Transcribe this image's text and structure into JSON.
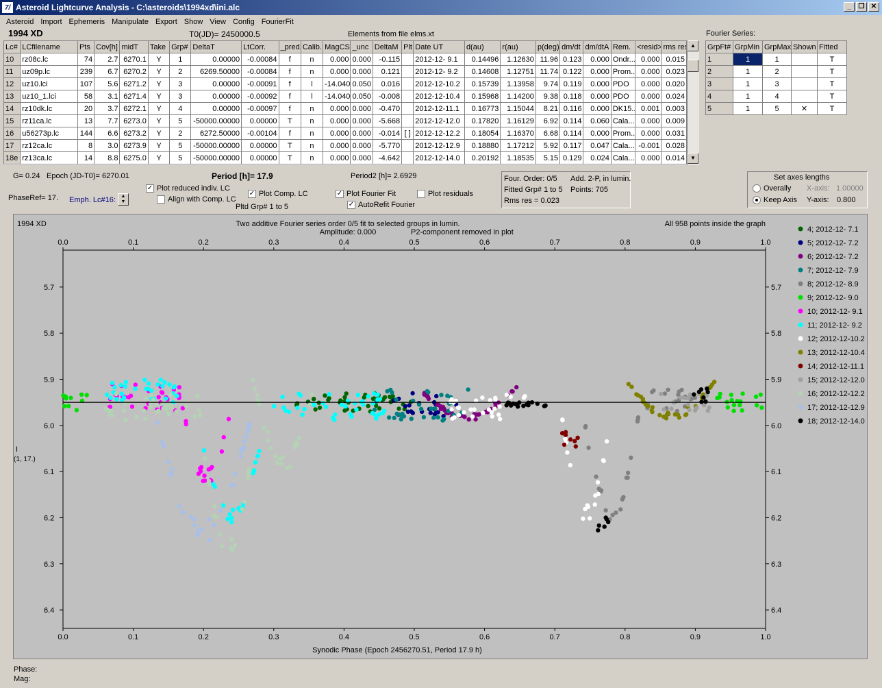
{
  "window": {
    "title": "Asteroid Lightcurve Analysis - C:\\asteroids\\1994xd\\ini.alc",
    "min": "_",
    "restore": "❐",
    "close": "✕"
  },
  "menu": [
    "Asteroid",
    "Import",
    "Ephemeris",
    "Manipulate",
    "Export",
    "Show",
    "View",
    "Config",
    "FourierFit"
  ],
  "header": {
    "asteroid": "1994 XD",
    "t0": "T0(JD)= 2450000.5",
    "elements": "Elements from file elms.xt",
    "fourier_title": "Fourier Series:"
  },
  "lc_table": {
    "columns": [
      "Lc#",
      "LCfilename",
      "Pts",
      "Cov[h]",
      "midT",
      "Take",
      "Grp#",
      "DeltaT",
      "LtCorr.",
      "_pred.",
      "Calib.",
      "MagCS",
      "_unc",
      "DeltaM",
      "Plt",
      "Date UT",
      "d(au)",
      "r(au)",
      "p(deg)",
      "dm/dt",
      "dm/dtA",
      "Rem.",
      "<resid>",
      "rms res"
    ],
    "rows": [
      [
        "10",
        "rz08c.lc",
        "74",
        "2.7",
        "6270.1",
        "Y",
        "1",
        "0.00000",
        "-0.00084",
        "f",
        "n",
        "0.000",
        "0.000",
        "-0.115",
        "",
        "2012-12- 9.1",
        "0.14496",
        "1.12630",
        "11.96",
        "0.123",
        "0.000",
        "Ondr...",
        "0.000",
        "0.015"
      ],
      [
        "11",
        "uz09p.lc",
        "239",
        "6.7",
        "6270.2",
        "Y",
        "2",
        "6269.50000",
        "-0.00084",
        "f",
        "n",
        "0.000",
        "0.000",
        "0.121",
        "",
        "2012-12- 9.2",
        "0.14608",
        "1.12751",
        "11.74",
        "0.122",
        "0.000",
        "Prom...",
        "0.000",
        "0.023"
      ],
      [
        "12",
        "uz10.lci",
        "107",
        "5.6",
        "6271.2",
        "Y",
        "3",
        "0.00000",
        "-0.00091",
        "f",
        "l",
        "-14.040",
        "0.050",
        "0.016",
        "",
        "2012-12-10.2",
        "0.15739",
        "1.13958",
        "9.74",
        "0.119",
        "0.000",
        "PDO",
        "0.000",
        "0.020"
      ],
      [
        "13",
        "uz10_1.lci",
        "58",
        "3.1",
        "6271.4",
        "Y",
        "3",
        "0.00000",
        "-0.00092",
        "f",
        "l",
        "-14.040",
        "0.050",
        "-0.008",
        "",
        "2012-12-10.4",
        "0.15968",
        "1.14200",
        "9.38",
        "0.118",
        "0.000",
        "PDO",
        "0.000",
        "0.024"
      ],
      [
        "14",
        "rz10dk.lc",
        "20",
        "3.7",
        "6272.1",
        "Y",
        "4",
        "0.00000",
        "-0.00097",
        "f",
        "n",
        "0.000",
        "0.000",
        "-0.470",
        "",
        "2012-12-11.1",
        "0.16773",
        "1.15044",
        "8.21",
        "0.116",
        "0.000",
        "DK15...",
        "0.001",
        "0.003"
      ],
      [
        "15",
        "rz11ca.lc",
        "13",
        "7.7",
        "6273.0",
        "Y",
        "5",
        "-50000.00000",
        "0.00000",
        "T",
        "n",
        "0.000",
        "0.000",
        "-5.668",
        "",
        "2012-12-12.0",
        "0.17820",
        "1.16129",
        "6.92",
        "0.114",
        "0.060",
        "Cala...",
        "0.000",
        "0.009"
      ],
      [
        "16",
        "u56273p.lc",
        "144",
        "6.6",
        "6273.2",
        "Y",
        "2",
        "6272.50000",
        "-0.00104",
        "f",
        "n",
        "0.000",
        "0.000",
        "-0.014",
        "[ ]",
        "2012-12-12.2",
        "0.18054",
        "1.16370",
        "6.68",
        "0.114",
        "0.000",
        "Prom...",
        "0.000",
        "0.031"
      ],
      [
        "17",
        "rz12ca.lc",
        "8",
        "3.0",
        "6273.9",
        "Y",
        "5",
        "-50000.00000",
        "0.00000",
        "T",
        "n",
        "0.000",
        "0.000",
        "-5.770",
        "",
        "2012-12-12.9",
        "0.18880",
        "1.17212",
        "5.92",
        "0.117",
        "0.047",
        "Cala...",
        "-0.001",
        "0.028"
      ],
      [
        "18e",
        "rz13ca.lc",
        "14",
        "8.8",
        "6275.0",
        "Y",
        "5",
        "-50000.00000",
        "0.00000",
        "T",
        "n",
        "0.000",
        "0.000",
        "-4.642",
        "",
        "2012-12-14.0",
        "0.20192",
        "1.18535",
        "5.15",
        "0.129",
        "0.024",
        "Cala...",
        "0.000",
        "0.014"
      ]
    ]
  },
  "fourier_table": {
    "columns": [
      "GrpFt#",
      "GrpMin",
      "GrpMax",
      "Shown",
      "Fitted"
    ],
    "rows": [
      [
        "1",
        "1",
        "1",
        "",
        "T"
      ],
      [
        "2",
        "1",
        "2",
        "",
        "T"
      ],
      [
        "3",
        "1",
        "3",
        "",
        "T"
      ],
      [
        "4",
        "1",
        "4",
        "",
        "T"
      ],
      [
        "5",
        "1",
        "5",
        "✕",
        "T"
      ]
    ]
  },
  "controls": {
    "g": "G= 0.24",
    "epoch": "Epoch (JD-T0)= 6270.01",
    "period": "Period [h]= 17.9",
    "period2": "Period2 [h]= 2.6929",
    "phaseref": "PhaseRef= 17.",
    "emph": "Emph. Lc#16:",
    "plot_reduced": "Plot reduced indiv. LC",
    "align": "Align with Comp. LC",
    "plot_comp": "Plot Comp. LC",
    "pltd_grp": "Pltd Grp#  1  to   5",
    "plot_fourier": "Plot Fourier Fit",
    "autorefit": "AutoRefit Fourier",
    "plot_resid": "Plot residuals",
    "four_order": "Four. Order:  0/5",
    "add2p": "Add. 2-P, in lumin.",
    "fitted_grp": "Fitted Grp# 1 to 5",
    "points": "Points: 705",
    "rms": "Rms res     = 0.023",
    "axes_title": "Set axes lengths",
    "overally": "Overally",
    "keep_axis": "Keep Axis",
    "xaxis": "X-axis:",
    "xaxis_val": "1.00000",
    "yaxis": "Y-axis:",
    "yaxis_val": "0.800"
  },
  "plot": {
    "name": "1994 XD",
    "line1": "Two additive Fourier series order 0/5 fit to selected groups in lumin.",
    "line2": "Amplitude: 0.000",
    "line3": "P2-component removed in plot",
    "inside": "All 958 points inside the graph",
    "ylabel1": "I",
    "ylabel2": "(1, 17.)",
    "xlabel": "Synodic Phase (Epoch 2456270.51, Period 17.9 h)"
  },
  "chart_data": {
    "type": "scatter",
    "xlim": [
      0,
      1
    ],
    "ylim": [
      5.62,
      6.44
    ],
    "y_inverted": true,
    "xticks": [
      "0.0",
      "0.1",
      "0.2",
      "0.3",
      "0.4",
      "0.5",
      "0.6",
      "0.7",
      "0.8",
      "0.9",
      "1.0"
    ],
    "yticks": [
      "5.7",
      "5.8",
      "5.9",
      "6.0",
      "6.1",
      "6.2",
      "6.3",
      "6.4"
    ],
    "fit_level": 5.95,
    "legend_placement": "right",
    "series": [
      {
        "name": "4; 2012-12- 7.1",
        "color": "#006400",
        "segments": [
          [
            0.33,
            0.5,
            5.93,
            5.97
          ]
        ]
      },
      {
        "name": "5; 2012-12- 7.2",
        "color": "#00007f",
        "segments": [
          [
            0.47,
            0.56,
            5.93,
            5.98
          ]
        ]
      },
      {
        "name": "6; 2012-12- 7.2",
        "color": "#800080",
        "segments": [
          [
            0.5,
            0.65,
            5.91,
            5.99
          ]
        ]
      },
      {
        "name": "7; 2012-12- 7.9",
        "color": "#008080",
        "segments": [
          [
            0.44,
            0.58,
            5.92,
            5.99
          ]
        ]
      },
      {
        "name": "8; 2012-12- 8.9",
        "color": "#808080",
        "segments": [
          [
            0.74,
            0.82,
            5.97,
            6.22
          ],
          [
            0.83,
            0.9,
            5.92,
            5.97
          ]
        ]
      },
      {
        "name": "9; 2012-12- 9.0",
        "color": "#00e000",
        "segments": [
          [
            0.0,
            0.04,
            5.93,
            5.97
          ],
          [
            0.93,
            1.0,
            5.93,
            5.97
          ]
        ]
      },
      {
        "name": "10; 2012-12- 9.1",
        "color": "#ff00ff",
        "segments": [
          [
            0.05,
            0.17,
            5.91,
            5.97
          ],
          [
            0.17,
            0.24,
            5.96,
            6.13
          ]
        ]
      },
      {
        "name": "11; 2012-12- 9.2",
        "color": "#00ffff",
        "segments": [
          [
            0.05,
            0.17,
            5.9,
            5.95
          ],
          [
            0.2,
            0.28,
            6.05,
            6.21
          ],
          [
            0.3,
            0.46,
            5.93,
            5.99
          ]
        ]
      },
      {
        "name": "12; 2012-12-10.2",
        "color": "#ffffff",
        "segments": [
          [
            0.55,
            0.67,
            5.93,
            5.99
          ],
          [
            0.71,
            0.78,
            5.98,
            6.22
          ]
        ]
      },
      {
        "name": "13; 2012-12-10.4",
        "color": "#808000",
        "segments": [
          [
            0.8,
            0.93,
            5.9,
            5.99
          ]
        ]
      },
      {
        "name": "14; 2012-12-11.1",
        "color": "#800000",
        "segments": [
          [
            0.71,
            0.74,
            6.01,
            6.07
          ]
        ]
      },
      {
        "name": "15; 2012-12-12.0",
        "color": "#a0a0a0",
        "segments": [
          [
            0.85,
            0.92,
            5.93,
            5.97
          ]
        ]
      },
      {
        "name": "16; 2012-12-12.2",
        "color": "#b4d2b4",
        "segments": [
          [
            0.06,
            0.2,
            5.93,
            5.99
          ],
          [
            0.2,
            0.27,
            6.05,
            6.29
          ],
          [
            0.27,
            0.36,
            5.9,
            6.1
          ]
        ]
      },
      {
        "name": "17; 2012-12-12.9",
        "color": "#a8c0e8",
        "segments": [
          [
            0.13,
            0.27,
            5.97,
            6.26
          ]
        ]
      },
      {
        "name": "18; 2012-12-14.0",
        "color": "#000000",
        "segments": [
          [
            0.63,
            0.69,
            5.95,
            5.96
          ],
          [
            0.76,
            0.78,
            6.2,
            6.23
          ],
          [
            0.89,
            0.92,
            5.92,
            5.95
          ]
        ]
      }
    ]
  },
  "status": {
    "phase": "Phase:",
    "mag": "Mag:"
  }
}
